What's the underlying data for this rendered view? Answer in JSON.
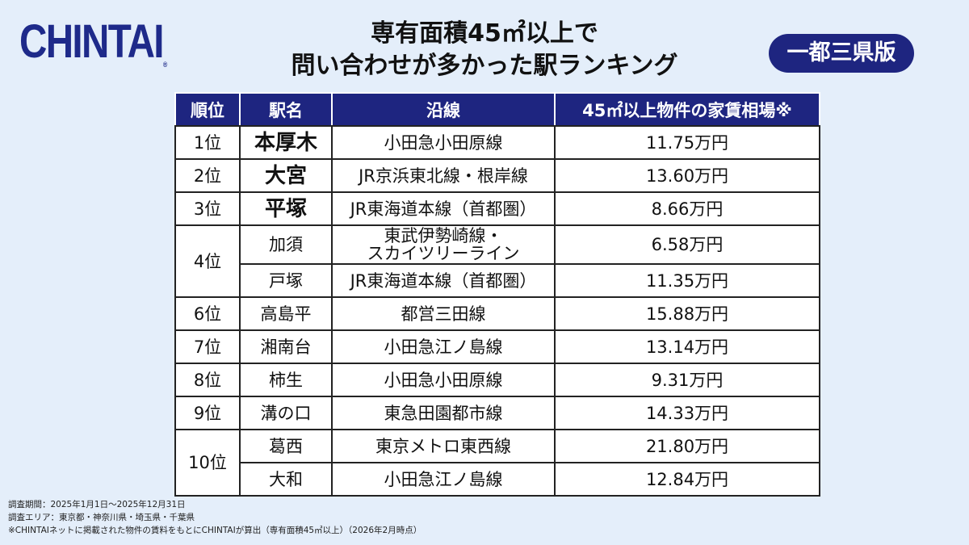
{
  "logo": "CHINTAI",
  "title": {
    "line1": "専有面積45㎡以上で",
    "line2": "問い合わせが多かった駅ランキング"
  },
  "badge": "一都三県版",
  "table": {
    "headers": [
      "順位",
      "駅名",
      "沿線",
      "45㎡以上物件の家賃相場※"
    ],
    "rows": [
      {
        "rank": "1位",
        "station": "本厚木",
        "line": "小田急小田原線",
        "rent": "11.75万円"
      },
      {
        "rank": "2位",
        "station": "大宮",
        "line": "JR京浜東北線・根岸線",
        "rent": "13.60万円"
      },
      {
        "rank": "3位",
        "station": "平塚",
        "line": "JR東海道本線（首都圏）",
        "rent": "8.66万円"
      },
      {
        "rank": "4位",
        "station": "加須",
        "line": "東武伊勢崎線・\nスカイツリーライン",
        "rent": "6.58万円"
      },
      {
        "rank": "",
        "station": "戸塚",
        "line": "JR東海道本線（首都圏）",
        "rent": "11.35万円"
      },
      {
        "rank": "6位",
        "station": "高島平",
        "line": "都営三田線",
        "rent": "15.88万円"
      },
      {
        "rank": "7位",
        "station": "湘南台",
        "line": "小田急江ノ島線",
        "rent": "13.14万円"
      },
      {
        "rank": "8位",
        "station": "柿生",
        "line": "小田急小田原線",
        "rent": "9.31万円"
      },
      {
        "rank": "9位",
        "station": "溝の口",
        "line": "東急田園都市線",
        "rent": "14.33万円"
      },
      {
        "rank": "10位",
        "station": "葛西",
        "line": "東京メトロ東西線",
        "rent": "21.80万円"
      },
      {
        "rank": "",
        "station": "大和",
        "line": "小田急江ノ島線",
        "rent": "12.84万円"
      }
    ]
  },
  "notes": [
    "調査期間：2025年1月1日～2025年12月31日",
    "調査エリア：東京都・神奈川県・埼玉県・千葉県",
    "※CHINTAIネットに掲載された物件の賃料をもとにCHINTAIが算出（専有面積45㎡以上）（2026年2月時点）"
  ]
}
